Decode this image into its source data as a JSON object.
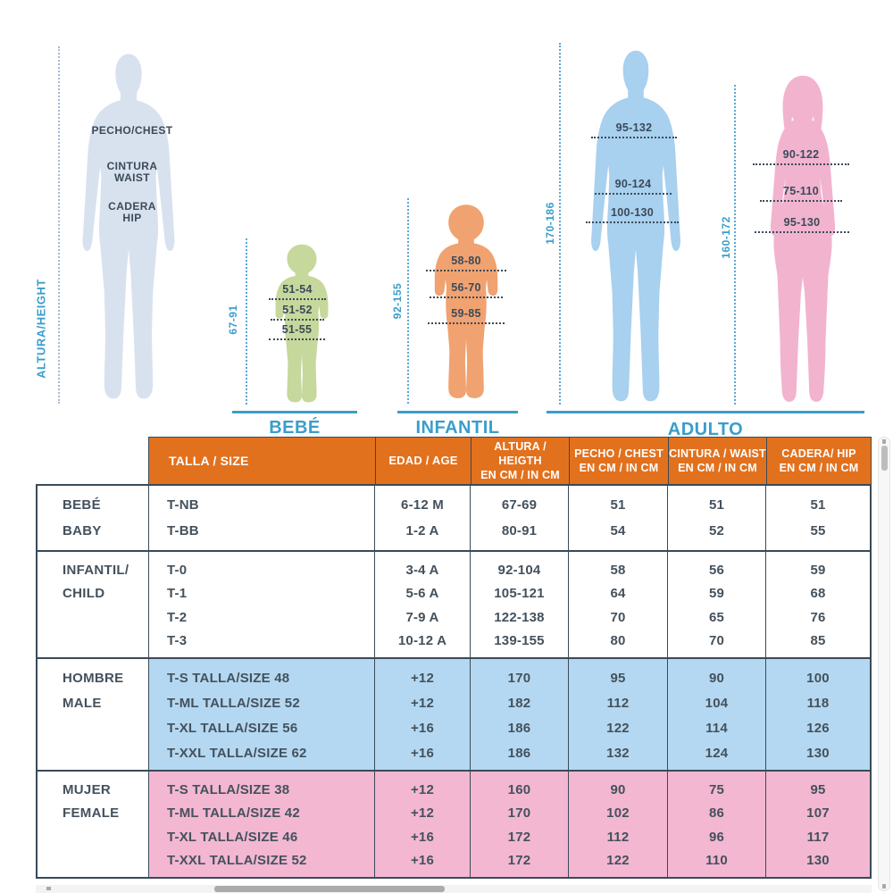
{
  "colors": {
    "accent_blue": "#3A9ECB",
    "header_orange": "#E2711E",
    "table_border": "#3A4A57",
    "table_text": "#44515C",
    "measure_text": "#3B4A5A",
    "axis_dotted_blue": "#5AA7D6",
    "axis_dotted_grey": "#A6BAD0",
    "reference_silhouette": "#D8E2EF",
    "baby_silhouette": "#C6D89B",
    "child_silhouette": "#F0A270",
    "male_silhouette": "#A8D0EF",
    "female_silhouette": "#F2B3CF"
  },
  "figures": {
    "reference": {
      "axis_label": "ALTURA/HEIGHT",
      "chest_label": "PECHO/CHEST",
      "waist_label_line1": "CINTURA",
      "waist_label_line2": "WAIST",
      "hip_label_line1": "CADERA",
      "hip_label_line2": "HIP"
    },
    "baby": {
      "height_range": "67-91",
      "chest": "51-54",
      "waist": "51-52",
      "hip": "51-55"
    },
    "child": {
      "height_range": "92-155",
      "chest": "58-80",
      "waist": "56-70",
      "hip": "59-85"
    },
    "adult_male": {
      "height_range": "170-186",
      "chest": "95-132",
      "waist": "90-124",
      "hip": "100-130"
    },
    "adult_female": {
      "height_range": "160-172",
      "chest": "90-122",
      "waist": "75-110",
      "hip": "95-130"
    }
  },
  "section_labels": {
    "baby": "BEBÉ",
    "child": "INFANTIL",
    "adult": "ADULTO"
  },
  "chart_data": {
    "type": "table",
    "columns": [
      {
        "line1": "TALLA / SIZE",
        "line2": ""
      },
      {
        "line1": "EDAD / AGE",
        "line2": ""
      },
      {
        "line1": "ALTURA / HEIGTH",
        "line2": "EN CM / IN CM"
      },
      {
        "line1": "PECHO / CHEST",
        "line2": "EN CM / IN CM"
      },
      {
        "line1": "CINTURA / WAIST",
        "line2": "EN CM / IN CM"
      },
      {
        "line1": "CADERA/ HIP",
        "line2": "EN CM / IN CM"
      }
    ],
    "sections": [
      {
        "id": "bebe",
        "group_es": "BEBÉ",
        "group_en": "BABY",
        "row_bg": "#FFFFFF",
        "rows": [
          [
            "T-NB",
            "6-12 M",
            "67-69",
            "51",
            "51",
            "51"
          ],
          [
            "T-BB",
            "1-2 A",
            "80-91",
            "54",
            "52",
            "55"
          ]
        ]
      },
      {
        "id": "infantil",
        "group_es": "INFANTIL/",
        "group_en": "CHILD",
        "row_bg": "#FFFFFF",
        "rows": [
          [
            "T-0",
            "3-4 A",
            "92-104",
            "58",
            "56",
            "59"
          ],
          [
            "T-1",
            "5-6 A",
            "105-121",
            "64",
            "59",
            "68"
          ],
          [
            "T-2",
            "7-9 A",
            "122-138",
            "70",
            "65",
            "76"
          ],
          [
            "T-3",
            "10-12 A",
            "139-155",
            "80",
            "70",
            "85"
          ]
        ]
      },
      {
        "id": "hombre",
        "group_es": "HOMBRE",
        "group_en": "MALE",
        "row_bg": "#B4D8F1",
        "rows": [
          [
            "T-S TALLA/SIZE 48",
            "+12",
            "170",
            "95",
            "90",
            "100"
          ],
          [
            "T-ML TALLA/SIZE 52",
            "+12",
            "182",
            "112",
            "104",
            "118"
          ],
          [
            "T-XL TALLA/SIZE 56",
            "+16",
            "186",
            "122",
            "114",
            "126"
          ],
          [
            "T-XXL TALLA/SIZE 62",
            "+16",
            "186",
            "132",
            "124",
            "130"
          ]
        ]
      },
      {
        "id": "mujer",
        "group_es": "MUJER",
        "group_en": "FEMALE",
        "row_bg": "#F3B7D2",
        "rows": [
          [
            "T-S TALLA/SIZE 38",
            "+12",
            "160",
            "90",
            "75",
            "95"
          ],
          [
            "T-ML TALLA/SIZE 42",
            "+12",
            "170",
            "102",
            "86",
            "107"
          ],
          [
            "T-XL TALLA/SIZE 46",
            "+16",
            "172",
            "112",
            "96",
            "117"
          ],
          [
            "T-XXL TALLA/SIZE 52",
            "+16",
            "172",
            "122",
            "110",
            "130"
          ]
        ]
      }
    ]
  }
}
